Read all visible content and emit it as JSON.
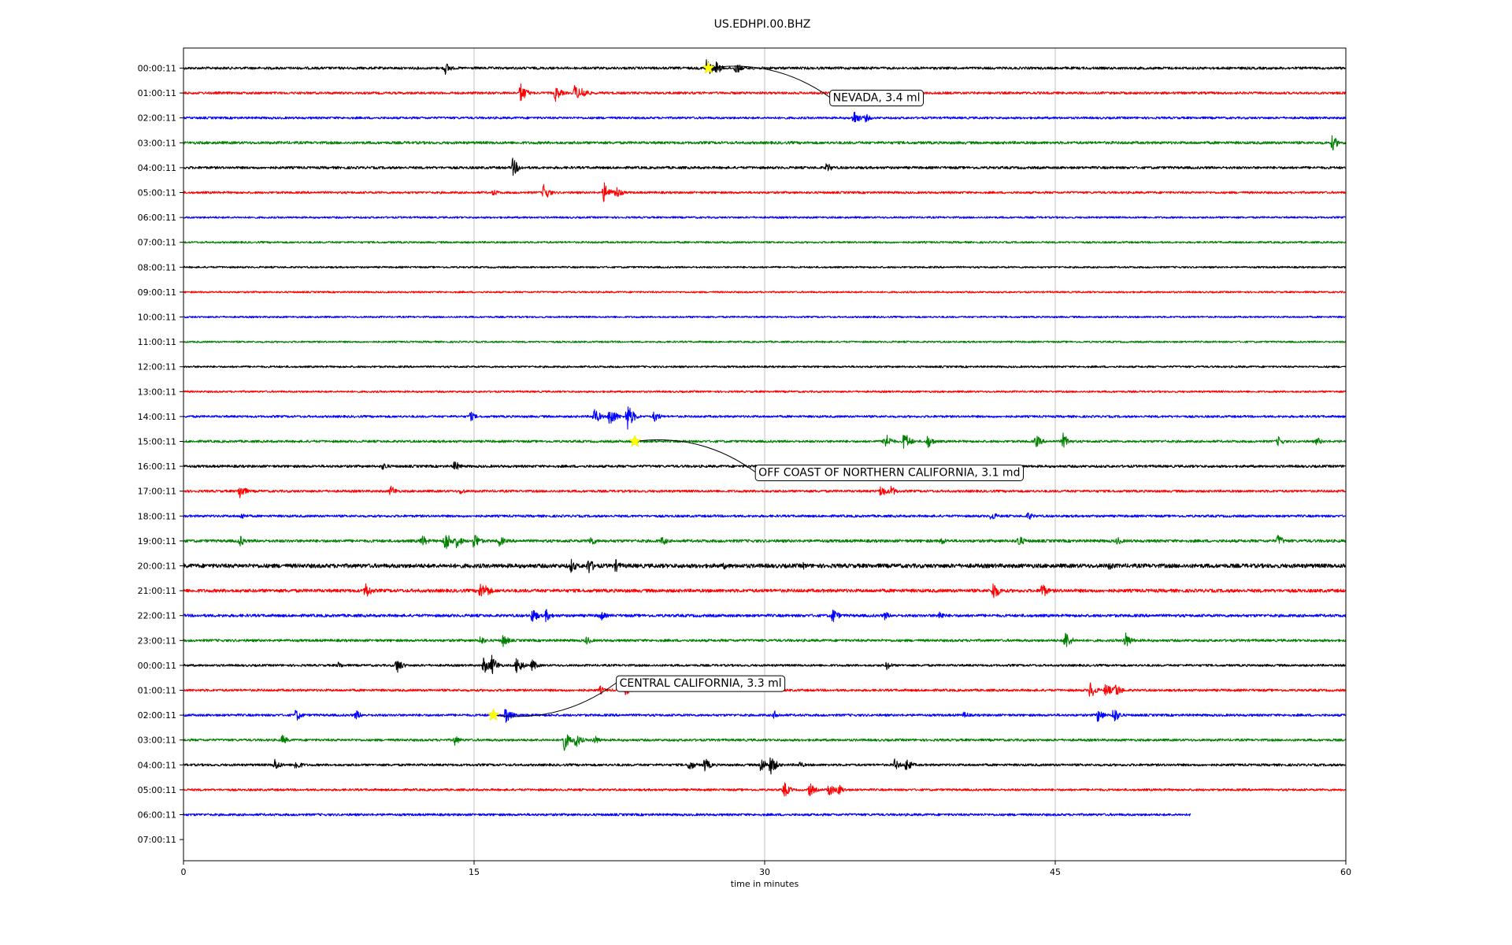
{
  "chart_data": {
    "type": "line",
    "title": "US.EDHPI.00.BHZ",
    "xlabel": "time in minutes",
    "ylabel": "",
    "xlim": [
      0,
      60
    ],
    "xticks": [
      0,
      15,
      30,
      45,
      60
    ],
    "grid": "vertical lines at x ticks",
    "colors": [
      "#000000",
      "#ff0000",
      "#0000ff",
      "#008000"
    ],
    "rows": [
      {
        "label": "00:00:11",
        "color": "#000000",
        "end": 60,
        "noise": 1.6,
        "events": [
          [
            13.5,
            9
          ],
          [
            27.0,
            14
          ],
          [
            27.5,
            9
          ],
          [
            28.5,
            9
          ]
        ]
      },
      {
        "label": "01:00:11",
        "color": "#ff0000",
        "end": 60,
        "noise": 1.5,
        "events": [
          [
            17.4,
            14
          ],
          [
            19.2,
            11
          ],
          [
            20.2,
            12
          ],
          [
            20.6,
            9
          ]
        ]
      },
      {
        "label": "02:00:11",
        "color": "#0000ff",
        "end": 60,
        "noise": 1.4,
        "events": [
          [
            34.6,
            11
          ],
          [
            35.2,
            6
          ]
        ]
      },
      {
        "label": "03:00:11",
        "color": "#008000",
        "end": 60,
        "noise": 1.7,
        "events": [
          [
            59.3,
            11
          ]
        ]
      },
      {
        "label": "04:00:11",
        "color": "#000000",
        "end": 60,
        "noise": 1.6,
        "events": [
          [
            17.0,
            13
          ],
          [
            33.2,
            7
          ]
        ]
      },
      {
        "label": "05:00:11",
        "color": "#ff0000",
        "end": 60,
        "noise": 1.4,
        "events": [
          [
            16.0,
            5
          ],
          [
            18.6,
            12
          ],
          [
            21.7,
            14
          ],
          [
            22.3,
            10
          ]
        ]
      },
      {
        "label": "06:00:11",
        "color": "#0000ff",
        "end": 60,
        "noise": 1.2,
        "events": []
      },
      {
        "label": "07:00:11",
        "color": "#008000",
        "end": 60,
        "noise": 1.2,
        "events": []
      },
      {
        "label": "08:00:11",
        "color": "#000000",
        "end": 60,
        "noise": 1.1,
        "events": []
      },
      {
        "label": "09:00:11",
        "color": "#ff0000",
        "end": 60,
        "noise": 1.1,
        "events": []
      },
      {
        "label": "10:00:11",
        "color": "#0000ff",
        "end": 60,
        "noise": 1.1,
        "events": []
      },
      {
        "label": "11:00:11",
        "color": "#008000",
        "end": 60,
        "noise": 1.1,
        "events": []
      },
      {
        "label": "12:00:11",
        "color": "#000000",
        "end": 60,
        "noise": 1.2,
        "events": []
      },
      {
        "label": "13:00:11",
        "color": "#ff0000",
        "end": 60,
        "noise": 1.2,
        "events": []
      },
      {
        "label": "14:00:11",
        "color": "#0000ff",
        "end": 60,
        "noise": 1.4,
        "events": [
          [
            14.8,
            7
          ],
          [
            21.2,
            12
          ],
          [
            22.0,
            16
          ],
          [
            22.9,
            20
          ],
          [
            24.3,
            8
          ]
        ]
      },
      {
        "label": "15:00:11",
        "color": "#008000",
        "end": 60,
        "noise": 1.5,
        "events": [
          [
            36.2,
            13
          ],
          [
            37.2,
            14
          ],
          [
            38.4,
            10
          ],
          [
            44.0,
            9
          ],
          [
            45.4,
            11
          ],
          [
            56.5,
            7
          ],
          [
            58.5,
            6
          ]
        ]
      },
      {
        "label": "16:00:11",
        "color": "#000000",
        "end": 60,
        "noise": 1.6,
        "events": [
          [
            10.3,
            6
          ],
          [
            14.0,
            8
          ]
        ]
      },
      {
        "label": "17:00:11",
        "color": "#ff0000",
        "end": 60,
        "noise": 1.5,
        "events": [
          [
            2.9,
            11
          ],
          [
            10.7,
            8
          ],
          [
            14.3,
            5
          ],
          [
            36.0,
            9
          ],
          [
            36.5,
            8
          ]
        ]
      },
      {
        "label": "18:00:11",
        "color": "#0000ff",
        "end": 60,
        "noise": 1.5,
        "events": [
          [
            3.0,
            5
          ],
          [
            41.7,
            7
          ],
          [
            43.6,
            6
          ]
        ]
      },
      {
        "label": "19:00:11",
        "color": "#008000",
        "end": 60,
        "noise": 1.8,
        "events": [
          [
            2.9,
            8
          ],
          [
            12.3,
            9
          ],
          [
            13.5,
            16
          ],
          [
            14.1,
            10
          ],
          [
            15.0,
            12
          ],
          [
            16.3,
            8
          ],
          [
            21.0,
            8
          ],
          [
            24.7,
            7
          ],
          [
            39.1,
            6
          ],
          [
            43.1,
            9
          ],
          [
            48.2,
            6
          ],
          [
            56.5,
            9
          ]
        ]
      },
      {
        "label": "20:00:11",
        "color": "#000000",
        "end": 60,
        "noise": 2.6,
        "events": [
          [
            20.0,
            10
          ],
          [
            20.9,
            12
          ],
          [
            22.3,
            9
          ],
          [
            27.9,
            5
          ],
          [
            32.0,
            5
          ],
          [
            47.8,
            7
          ]
        ]
      },
      {
        "label": "21:00:11",
        "color": "#ff0000",
        "end": 60,
        "noise": 2.1,
        "events": [
          [
            9.4,
            12
          ],
          [
            15.3,
            12
          ],
          [
            15.6,
            10
          ],
          [
            41.8,
            14
          ],
          [
            44.3,
            12
          ]
        ]
      },
      {
        "label": "22:00:11",
        "color": "#0000ff",
        "end": 60,
        "noise": 1.8,
        "events": [
          [
            18.0,
            11
          ],
          [
            18.7,
            9
          ],
          [
            21.5,
            8
          ],
          [
            33.5,
            11
          ],
          [
            36.2,
            6
          ],
          [
            39.0,
            7
          ]
        ]
      },
      {
        "label": "23:00:11",
        "color": "#008000",
        "end": 60,
        "noise": 1.6,
        "events": [
          [
            15.3,
            7
          ],
          [
            16.5,
            9
          ],
          [
            20.8,
            6
          ],
          [
            45.5,
            14
          ],
          [
            48.6,
            12
          ]
        ]
      },
      {
        "label": "00:00:11",
        "color": "#000000",
        "end": 60,
        "noise": 1.4,
        "events": [
          [
            8.0,
            5
          ],
          [
            11.0,
            11
          ],
          [
            15.5,
            12
          ],
          [
            15.9,
            14
          ],
          [
            17.2,
            13
          ],
          [
            18.0,
            8
          ],
          [
            36.3,
            6
          ]
        ]
      },
      {
        "label": "01:00:11",
        "color": "#ff0000",
        "end": 60,
        "noise": 1.5,
        "events": [
          [
            21.5,
            6
          ],
          [
            22.8,
            7
          ],
          [
            46.8,
            12
          ],
          [
            47.6,
            10
          ],
          [
            48.1,
            11
          ]
        ]
      },
      {
        "label": "02:00:11",
        "color": "#0000ff",
        "end": 60,
        "noise": 1.5,
        "events": [
          [
            5.8,
            9
          ],
          [
            8.9,
            7
          ],
          [
            16.6,
            13
          ],
          [
            30.5,
            6
          ],
          [
            40.3,
            5
          ],
          [
            47.2,
            10
          ],
          [
            48.0,
            12
          ]
        ]
      },
      {
        "label": "03:00:11",
        "color": "#008000",
        "end": 60,
        "noise": 1.5,
        "events": [
          [
            5.1,
            7
          ],
          [
            14.0,
            7
          ],
          [
            19.6,
            16
          ],
          [
            20.2,
            12
          ],
          [
            21.2,
            7
          ]
        ]
      },
      {
        "label": "04:00:11",
        "color": "#000000",
        "end": 60,
        "noise": 1.5,
        "events": [
          [
            4.7,
            9
          ],
          [
            5.8,
            8
          ],
          [
            26.1,
            9
          ],
          [
            26.9,
            10
          ],
          [
            29.8,
            11
          ],
          [
            30.3,
            14
          ],
          [
            31.8,
            5
          ],
          [
            36.7,
            8
          ],
          [
            37.3,
            10
          ]
        ]
      },
      {
        "label": "05:00:11",
        "color": "#ff0000",
        "end": 60,
        "noise": 1.4,
        "events": [
          [
            31.0,
            11
          ],
          [
            32.3,
            10
          ],
          [
            33.3,
            10
          ],
          [
            33.8,
            8
          ]
        ]
      },
      {
        "label": "06:00:11",
        "color": "#0000ff",
        "end": 52.0,
        "noise": 1.5,
        "events": []
      },
      {
        "label": "07:00:11",
        "color": "#000000",
        "end": 0,
        "noise": 0,
        "events": []
      }
    ],
    "annotations": [
      {
        "text": "NEVADA, 3.4 ml",
        "row": 0,
        "x": 27.1
      },
      {
        "text": "OFF COAST OF NORTHERN CALIFORNIA, 3.1 md",
        "row": 15,
        "x": 23.3
      },
      {
        "text": "CENTRAL CALIFORNIA, 3.3 ml",
        "row": 26,
        "x": 16.0
      }
    ]
  }
}
